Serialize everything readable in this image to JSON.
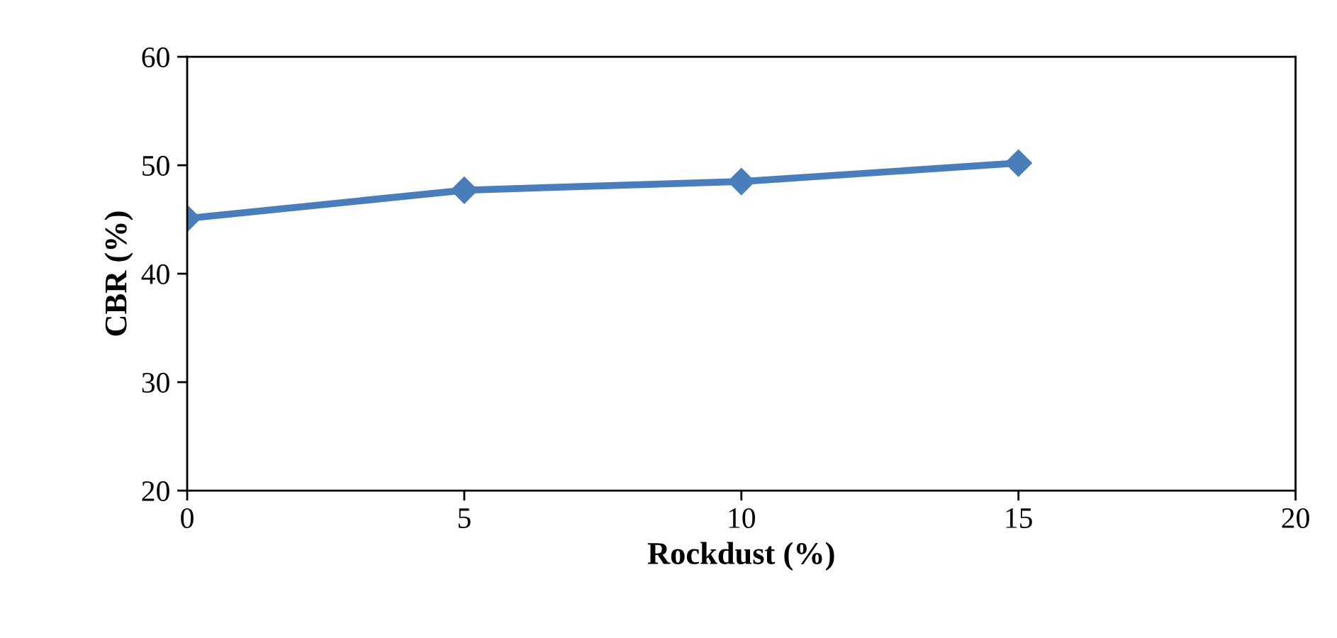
{
  "chart_data": {
    "type": "line",
    "xlabel": "Rockdust (%)",
    "ylabel": "CBR (%)",
    "x": [
      0,
      5,
      10,
      15
    ],
    "series": [
      {
        "color": "#4a7ebb",
        "values": [
          45.1,
          47.7,
          48.5,
          50.2
        ]
      }
    ],
    "xlim": [
      0,
      20
    ],
    "xticks": [
      0,
      5,
      10,
      15,
      20
    ],
    "ylim": [
      20,
      60
    ],
    "yticks": [
      20,
      30,
      40,
      50,
      60
    ],
    "marker": "diamond",
    "line_style": "solid",
    "grid": false
  }
}
